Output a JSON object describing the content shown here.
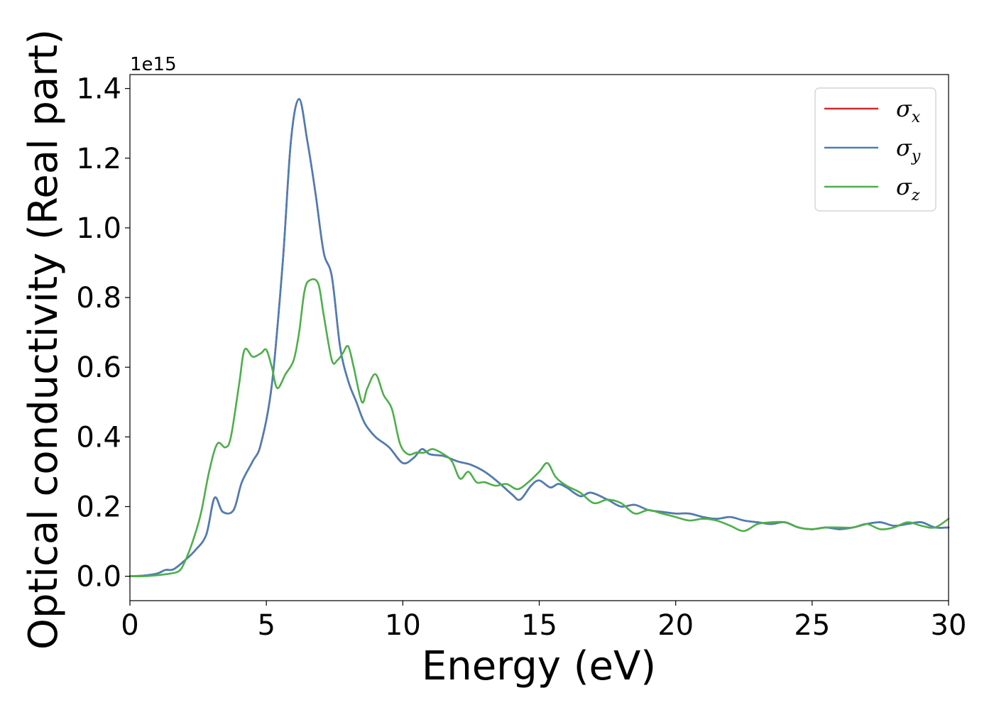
{
  "chart_data": {
    "type": "line",
    "xlabel": "Energy (eV)",
    "ylabel": "Optical conductivity (Real part)",
    "y_offset_label": "1e15",
    "xlim": [
      0,
      30
    ],
    "ylim": [
      -0.07,
      1.44
    ],
    "x_ticks": [
      0,
      5,
      10,
      15,
      20,
      25,
      30
    ],
    "x_tick_labels": [
      "0",
      "5",
      "10",
      "15",
      "20",
      "25",
      "30"
    ],
    "y_ticks": [
      0.0,
      0.2,
      0.4,
      0.6,
      0.8,
      1.0,
      1.2,
      1.4
    ],
    "y_tick_labels": [
      "0.0",
      "0.2",
      "0.4",
      "0.6",
      "0.8",
      "1.0",
      "1.2",
      "1.4"
    ],
    "grid": false,
    "legend_position": "top-right",
    "series": [
      {
        "name": "σx",
        "symbol": "σ",
        "subscript": "x",
        "color": "#d62728",
        "x": [
          0,
          0.5,
          1.0,
          1.3,
          1.6,
          2.0,
          2.4,
          2.8,
          3.1,
          3.4,
          3.8,
          4.1,
          4.5,
          4.8,
          5.2,
          5.6,
          5.9,
          6.2,
          6.5,
          6.8,
          7.1,
          7.4,
          7.7,
          8.0,
          8.3,
          8.6,
          9.0,
          9.5,
          10.0,
          10.4,
          10.7,
          11.0,
          11.5,
          12.0,
          12.5,
          13.0,
          13.5,
          14.0,
          14.3,
          14.7,
          15.0,
          15.4,
          15.7,
          16.0,
          16.5,
          16.9,
          17.5,
          18.0,
          18.5,
          19.0,
          19.5,
          20.0,
          20.5,
          21.0,
          21.5,
          22.0,
          22.5,
          23.0,
          23.5,
          24.0,
          24.5,
          25.0,
          25.5,
          26.0,
          26.5,
          27.0,
          27.5,
          28.0,
          28.5,
          29.0,
          29.5,
          30.0
        ],
        "values": [
          0.0,
          0.002,
          0.008,
          0.018,
          0.02,
          0.045,
          0.075,
          0.12,
          0.225,
          0.185,
          0.19,
          0.27,
          0.33,
          0.38,
          0.55,
          0.9,
          1.25,
          1.37,
          1.25,
          1.1,
          0.93,
          0.86,
          0.66,
          0.56,
          0.5,
          0.44,
          0.4,
          0.37,
          0.325,
          0.34,
          0.365,
          0.35,
          0.345,
          0.33,
          0.32,
          0.3,
          0.27,
          0.235,
          0.22,
          0.26,
          0.275,
          0.255,
          0.265,
          0.255,
          0.23,
          0.24,
          0.22,
          0.2,
          0.205,
          0.19,
          0.185,
          0.18,
          0.18,
          0.17,
          0.165,
          0.17,
          0.16,
          0.155,
          0.15,
          0.155,
          0.14,
          0.135,
          0.14,
          0.135,
          0.14,
          0.15,
          0.155,
          0.145,
          0.15,
          0.155,
          0.14,
          0.14
        ]
      },
      {
        "name": "σy",
        "symbol": "σ",
        "subscript": "y",
        "color": "#4a7fb5",
        "x": [
          0,
          0.5,
          1.0,
          1.3,
          1.6,
          2.0,
          2.4,
          2.8,
          3.1,
          3.4,
          3.8,
          4.1,
          4.5,
          4.8,
          5.2,
          5.6,
          5.9,
          6.2,
          6.5,
          6.8,
          7.1,
          7.4,
          7.7,
          8.0,
          8.3,
          8.6,
          9.0,
          9.5,
          10.0,
          10.4,
          10.7,
          11.0,
          11.5,
          12.0,
          12.5,
          13.0,
          13.5,
          14.0,
          14.3,
          14.7,
          15.0,
          15.4,
          15.7,
          16.0,
          16.5,
          16.9,
          17.5,
          18.0,
          18.5,
          19.0,
          19.5,
          20.0,
          20.5,
          21.0,
          21.5,
          22.0,
          22.5,
          23.0,
          23.5,
          24.0,
          24.5,
          25.0,
          25.5,
          26.0,
          26.5,
          27.0,
          27.5,
          28.0,
          28.5,
          29.0,
          29.5,
          30.0
        ],
        "values": [
          0.0,
          0.002,
          0.008,
          0.018,
          0.02,
          0.045,
          0.075,
          0.12,
          0.225,
          0.185,
          0.19,
          0.27,
          0.33,
          0.38,
          0.55,
          0.9,
          1.25,
          1.37,
          1.25,
          1.1,
          0.93,
          0.86,
          0.66,
          0.56,
          0.5,
          0.44,
          0.4,
          0.37,
          0.325,
          0.34,
          0.365,
          0.35,
          0.345,
          0.33,
          0.32,
          0.3,
          0.27,
          0.235,
          0.22,
          0.26,
          0.275,
          0.255,
          0.265,
          0.255,
          0.23,
          0.24,
          0.22,
          0.2,
          0.205,
          0.19,
          0.185,
          0.18,
          0.18,
          0.17,
          0.165,
          0.17,
          0.16,
          0.155,
          0.15,
          0.155,
          0.14,
          0.135,
          0.14,
          0.135,
          0.14,
          0.15,
          0.155,
          0.145,
          0.15,
          0.155,
          0.14,
          0.14
        ]
      },
      {
        "name": "σz",
        "symbol": "σ",
        "subscript": "z",
        "color": "#4daf4a",
        "x": [
          0,
          0.5,
          1.0,
          1.5,
          1.8,
          2.0,
          2.3,
          2.6,
          2.9,
          3.2,
          3.5,
          3.7,
          4.0,
          4.2,
          4.5,
          4.8,
          5.0,
          5.2,
          5.4,
          5.7,
          6.0,
          6.2,
          6.4,
          6.6,
          6.9,
          7.1,
          7.4,
          7.6,
          7.8,
          8.0,
          8.2,
          8.5,
          8.7,
          9.0,
          9.3,
          9.6,
          9.9,
          10.2,
          10.5,
          10.8,
          11.1,
          11.5,
          11.8,
          12.1,
          12.4,
          12.7,
          13.0,
          13.4,
          13.8,
          14.2,
          14.6,
          15.0,
          15.3,
          15.6,
          16.0,
          16.5,
          17.0,
          17.5,
          18.0,
          18.5,
          19.0,
          19.5,
          20.0,
          20.5,
          21.0,
          21.5,
          22.0,
          22.5,
          23.0,
          23.5,
          24.0,
          24.5,
          25.0,
          25.5,
          26.0,
          26.5,
          27.0,
          27.5,
          28.0,
          28.5,
          29.0,
          29.5,
          30.0
        ],
        "values": [
          0.0,
          0.0,
          0.003,
          0.008,
          0.015,
          0.04,
          0.1,
          0.18,
          0.3,
          0.38,
          0.37,
          0.4,
          0.55,
          0.65,
          0.63,
          0.64,
          0.65,
          0.6,
          0.54,
          0.58,
          0.62,
          0.7,
          0.82,
          0.85,
          0.84,
          0.75,
          0.62,
          0.62,
          0.64,
          0.66,
          0.6,
          0.5,
          0.54,
          0.58,
          0.52,
          0.48,
          0.38,
          0.35,
          0.355,
          0.355,
          0.365,
          0.35,
          0.33,
          0.28,
          0.3,
          0.27,
          0.27,
          0.26,
          0.265,
          0.25,
          0.27,
          0.3,
          0.325,
          0.285,
          0.26,
          0.24,
          0.21,
          0.22,
          0.21,
          0.18,
          0.19,
          0.18,
          0.17,
          0.16,
          0.165,
          0.16,
          0.145,
          0.13,
          0.15,
          0.155,
          0.155,
          0.14,
          0.135,
          0.14,
          0.14,
          0.14,
          0.15,
          0.135,
          0.14,
          0.155,
          0.145,
          0.14,
          0.165
        ]
      }
    ]
  }
}
